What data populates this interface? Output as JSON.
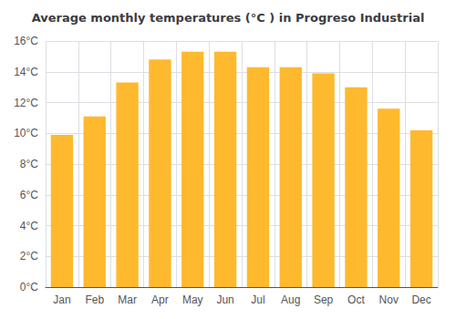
{
  "chart_data": {
    "type": "bar",
    "title": "Average monthly temperatures (°C ) in Progreso Industrial",
    "categories": [
      "Jan",
      "Feb",
      "Mar",
      "Apr",
      "May",
      "Jun",
      "Jul",
      "Aug",
      "Sep",
      "Oct",
      "Nov",
      "Dec"
    ],
    "values": [
      9.9,
      11.1,
      13.3,
      14.8,
      15.3,
      15.3,
      14.3,
      14.3,
      13.9,
      13.0,
      11.6,
      10.2
    ],
    "color": "#FFB92E",
    "ylim": [
      0,
      16
    ],
    "yticks": [
      {
        "value": 0,
        "label": "0°C"
      },
      {
        "value": 2,
        "label": "2°C"
      },
      {
        "value": 4,
        "label": "4°C"
      },
      {
        "value": 6,
        "label": "6°C"
      },
      {
        "value": 8,
        "label": "8°C"
      },
      {
        "value": 10,
        "label": "10°C"
      },
      {
        "value": 12,
        "label": "12°C"
      },
      {
        "value": 14,
        "label": "14°C"
      },
      {
        "value": 16,
        "label": "16°C"
      }
    ],
    "grid": true
  }
}
